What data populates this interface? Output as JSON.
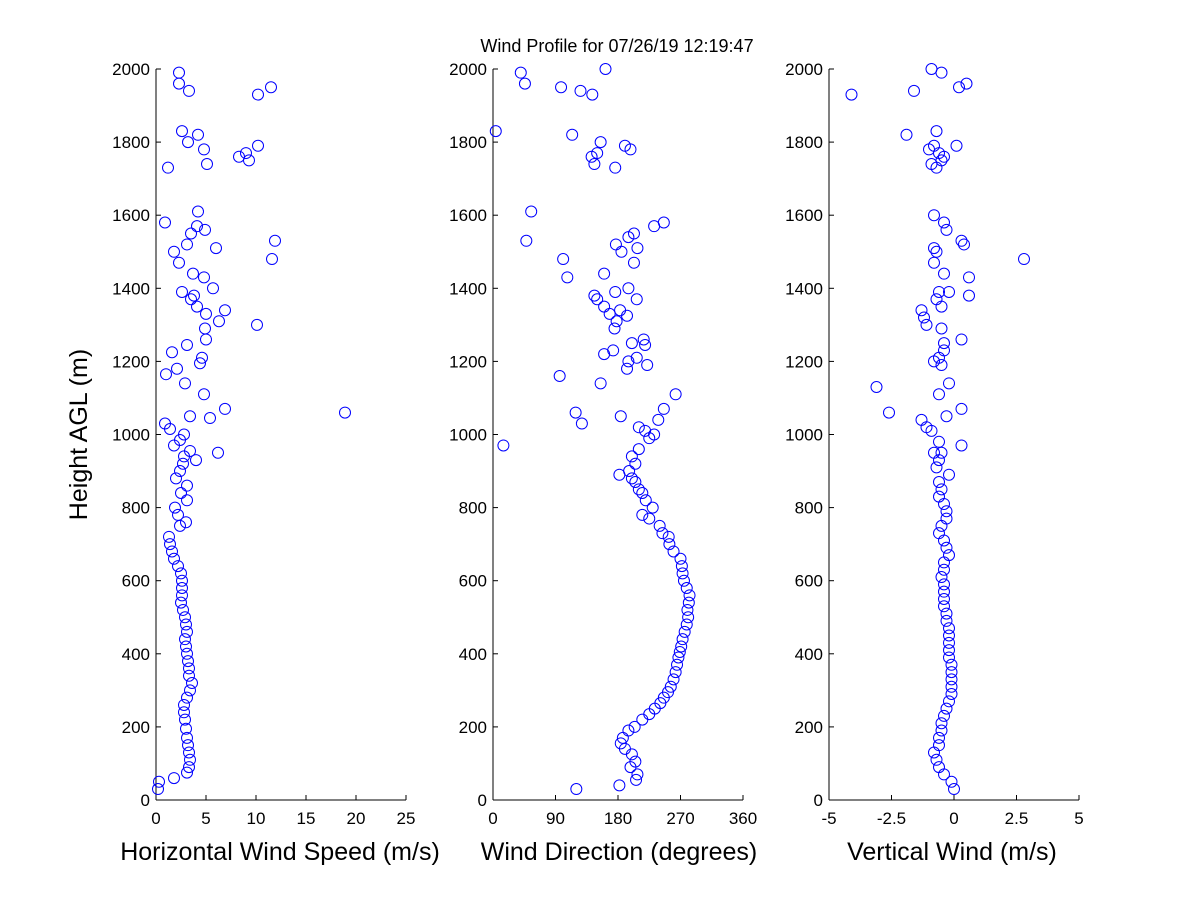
{
  "figure": {
    "title": "Wind Profile for  07/26/19 12:19:47",
    "marker_color": "#0000ff"
  },
  "chart_data": [
    {
      "type": "scatter",
      "xlabel": "Horizontal Wind Speed (m/s)",
      "ylabel": "Height AGL (m)",
      "xlim": [
        0,
        25
      ],
      "ylim": [
        0,
        2000
      ],
      "xticks": [
        0,
        5,
        10,
        15,
        20,
        25
      ],
      "xtick_labels": [
        "0",
        "5",
        "10",
        "15",
        "20",
        "25"
      ],
      "yticks": [
        0,
        200,
        400,
        600,
        800,
        1000,
        1200,
        1400,
        1600,
        1800,
        2000
      ],
      "ytick_labels": [
        "0",
        "200",
        "400",
        "600",
        "800",
        "1000",
        "1200",
        "1400",
        "1600",
        "1800",
        "2000"
      ],
      "grid": false,
      "points": [
        [
          0.3,
          50
        ],
        [
          0.2,
          30
        ],
        [
          1.8,
          60
        ],
        [
          3.1,
          75
        ],
        [
          3.3,
          90
        ],
        [
          3.4,
          110
        ],
        [
          3.3,
          130
        ],
        [
          3.2,
          150
        ],
        [
          3.1,
          170
        ],
        [
          3.0,
          195
        ],
        [
          2.9,
          220
        ],
        [
          2.8,
          240
        ],
        [
          2.8,
          260
        ],
        [
          3.1,
          280
        ],
        [
          3.4,
          300
        ],
        [
          3.6,
          320
        ],
        [
          3.3,
          340
        ],
        [
          3.3,
          360
        ],
        [
          3.2,
          380
        ],
        [
          3.1,
          400
        ],
        [
          3.0,
          420
        ],
        [
          2.9,
          440
        ],
        [
          3.1,
          460
        ],
        [
          3.0,
          480
        ],
        [
          2.9,
          500
        ],
        [
          2.7,
          520
        ],
        [
          2.5,
          540
        ],
        [
          2.6,
          560
        ],
        [
          2.6,
          580
        ],
        [
          2.6,
          600
        ],
        [
          2.5,
          620
        ],
        [
          2.2,
          640
        ],
        [
          1.8,
          660
        ],
        [
          1.6,
          680
        ],
        [
          1.4,
          700
        ],
        [
          1.3,
          720
        ],
        [
          2.4,
          750
        ],
        [
          3.0,
          760
        ],
        [
          2.2,
          780
        ],
        [
          1.9,
          800
        ],
        [
          3.1,
          820
        ],
        [
          2.5,
          840
        ],
        [
          3.1,
          860
        ],
        [
          2.0,
          880
        ],
        [
          2.4,
          900
        ],
        [
          2.7,
          920
        ],
        [
          2.8,
          940
        ],
        [
          3.4,
          955
        ],
        [
          1.8,
          970
        ],
        [
          2.4,
          985
        ],
        [
          2.8,
          1000
        ],
        [
          1.4,
          1015
        ],
        [
          0.9,
          1030
        ],
        [
          3.4,
          1050
        ],
        [
          5.4,
          1045
        ],
        [
          6.9,
          1070
        ],
        [
          18.9,
          1060
        ],
        [
          4.8,
          1110
        ],
        [
          2.9,
          1140
        ],
        [
          1.0,
          1165
        ],
        [
          2.1,
          1180
        ],
        [
          4.4,
          1195
        ],
        [
          4.6,
          1210
        ],
        [
          1.6,
          1225
        ],
        [
          3.1,
          1245
        ],
        [
          5.0,
          1260
        ],
        [
          4.9,
          1290
        ],
        [
          10.1,
          1300
        ],
        [
          6.3,
          1310
        ],
        [
          5.0,
          1330
        ],
        [
          6.9,
          1340
        ],
        [
          4.1,
          1350
        ],
        [
          3.5,
          1370
        ],
        [
          3.8,
          1380
        ],
        [
          2.6,
          1390
        ],
        [
          5.7,
          1400
        ],
        [
          4.8,
          1430
        ],
        [
          3.7,
          1440
        ],
        [
          2.3,
          1470
        ],
        [
          11.6,
          1480
        ],
        [
          1.8,
          1500
        ],
        [
          6.0,
          1510
        ],
        [
          3.1,
          1520
        ],
        [
          11.9,
          1530
        ],
        [
          3.5,
          1550
        ],
        [
          4.9,
          1560
        ],
        [
          4.1,
          1570
        ],
        [
          0.9,
          1580
        ],
        [
          4.2,
          1610
        ],
        [
          6.2,
          950
        ],
        [
          4.0,
          930
        ],
        [
          8.3,
          1760
        ],
        [
          9.3,
          1750
        ],
        [
          9.0,
          1770
        ],
        [
          4.8,
          1780
        ],
        [
          10.2,
          1790
        ],
        [
          3.2,
          1800
        ],
        [
          1.2,
          1730
        ],
        [
          5.1,
          1740
        ],
        [
          2.6,
          1830
        ],
        [
          4.2,
          1820
        ],
        [
          10.2,
          1930
        ],
        [
          11.5,
          1950
        ],
        [
          3.3,
          1940
        ],
        [
          2.3,
          1960
        ],
        [
          2.3,
          1990
        ]
      ]
    },
    {
      "type": "scatter",
      "xlabel": "Wind Direction (degrees)",
      "ylabel": "",
      "xlim": [
        0,
        360
      ],
      "ylim": [
        0,
        2000
      ],
      "xticks": [
        0,
        90,
        180,
        270,
        360
      ],
      "xtick_labels": [
        "0",
        "90",
        "180",
        "270",
        "360"
      ],
      "yticks": [
        0,
        200,
        400,
        600,
        800,
        1000,
        1200,
        1400,
        1600,
        1800,
        2000
      ],
      "ytick_labels": [
        "0",
        "200",
        "400",
        "600",
        "800",
        "1000",
        "1200",
        "1400",
        "1600",
        "1800",
        "2000"
      ],
      "grid": false,
      "points": [
        [
          120,
          30
        ],
        [
          182,
          40
        ],
        [
          206,
          55
        ],
        [
          208,
          70
        ],
        [
          198,
          90
        ],
        [
          205,
          105
        ],
        [
          200,
          125
        ],
        [
          190,
          140
        ],
        [
          184,
          155
        ],
        [
          187,
          170
        ],
        [
          195,
          190
        ],
        [
          204,
          200
        ],
        [
          215,
          220
        ],
        [
          225,
          235
        ],
        [
          233,
          250
        ],
        [
          241,
          265
        ],
        [
          246,
          280
        ],
        [
          252,
          295
        ],
        [
          256,
          310
        ],
        [
          260,
          330
        ],
        [
          263,
          350
        ],
        [
          265,
          370
        ],
        [
          267,
          390
        ],
        [
          269,
          405
        ],
        [
          271,
          420
        ],
        [
          273,
          440
        ],
        [
          276,
          460
        ],
        [
          279,
          480
        ],
        [
          281,
          500
        ],
        [
          280,
          520
        ],
        [
          282,
          540
        ],
        [
          283,
          560
        ],
        [
          279,
          580
        ],
        [
          275,
          600
        ],
        [
          273,
          620
        ],
        [
          272,
          640
        ],
        [
          270,
          660
        ],
        [
          260,
          680
        ],
        [
          254,
          700
        ],
        [
          253,
          720
        ],
        [
          244,
          730
        ],
        [
          240,
          750
        ],
        [
          225,
          770
        ],
        [
          215,
          780
        ],
        [
          230,
          800
        ],
        [
          220,
          820
        ],
        [
          215,
          840
        ],
        [
          210,
          850
        ],
        [
          205,
          870
        ],
        [
          200,
          880
        ],
        [
          182,
          890
        ],
        [
          196,
          900
        ],
        [
          205,
          920
        ],
        [
          200,
          940
        ],
        [
          210,
          960
        ],
        [
          225,
          990
        ],
        [
          232,
          1000
        ],
        [
          219,
          1010
        ],
        [
          210,
          1020
        ],
        [
          15,
          970
        ],
        [
          238,
          1040
        ],
        [
          184,
          1050
        ],
        [
          246,
          1070
        ],
        [
          119,
          1060
        ],
        [
          128,
          1030
        ],
        [
          263,
          1110
        ],
        [
          155,
          1140
        ],
        [
          96,
          1160
        ],
        [
          193,
          1180
        ],
        [
          222,
          1190
        ],
        [
          195,
          1200
        ],
        [
          207,
          1210
        ],
        [
          160,
          1220
        ],
        [
          173,
          1230
        ],
        [
          219,
          1245
        ],
        [
          217,
          1260
        ],
        [
          200,
          1250
        ],
        [
          175,
          1290
        ],
        [
          178,
          1310
        ],
        [
          193,
          1325
        ],
        [
          168,
          1330
        ],
        [
          183,
          1340
        ],
        [
          160,
          1350
        ],
        [
          150,
          1370
        ],
        [
          207,
          1370
        ],
        [
          146,
          1380
        ],
        [
          176,
          1390
        ],
        [
          195,
          1400
        ],
        [
          203,
          1470
        ],
        [
          160,
          1440
        ],
        [
          107,
          1430
        ],
        [
          101,
          1480
        ],
        [
          185,
          1500
        ],
        [
          177,
          1520
        ],
        [
          208,
          1510
        ],
        [
          195,
          1540
        ],
        [
          203,
          1550
        ],
        [
          232,
          1570
        ],
        [
          246,
          1580
        ],
        [
          48,
          1530
        ],
        [
          55,
          1610
        ],
        [
          198,
          1780
        ],
        [
          190,
          1790
        ],
        [
          146,
          1740
        ],
        [
          176,
          1730
        ],
        [
          150,
          1770
        ],
        [
          142,
          1760
        ],
        [
          155,
          1800
        ],
        [
          114,
          1820
        ],
        [
          4,
          1830
        ],
        [
          143,
          1930
        ],
        [
          126,
          1940
        ],
        [
          98,
          1950
        ],
        [
          46,
          1960
        ],
        [
          40,
          1990
        ],
        [
          162,
          2000
        ]
      ]
    },
    {
      "type": "scatter",
      "xlabel": "Vertical Wind (m/s)",
      "ylabel": "",
      "xlim": [
        -5,
        5
      ],
      "ylim": [
        0,
        2000
      ],
      "xticks": [
        -5,
        -2.5,
        0,
        2.5,
        5
      ],
      "xtick_labels": [
        "-5",
        "-2.5",
        "0",
        "2.5",
        "5"
      ],
      "yticks": [
        0,
        200,
        400,
        600,
        800,
        1000,
        1200,
        1400,
        1600,
        1800,
        2000
      ],
      "ytick_labels": [
        "0",
        "200",
        "400",
        "600",
        "800",
        "1000",
        "1200",
        "1400",
        "1600",
        "1800",
        "2000"
      ],
      "grid": false,
      "points": [
        [
          0.0,
          30
        ],
        [
          -0.1,
          50
        ],
        [
          -0.4,
          70
        ],
        [
          -0.6,
          90
        ],
        [
          -0.7,
          110
        ],
        [
          -0.8,
          130
        ],
        [
          -0.6,
          150
        ],
        [
          -0.6,
          170
        ],
        [
          -0.5,
          190
        ],
        [
          -0.5,
          210
        ],
        [
          -0.4,
          230
        ],
        [
          -0.3,
          250
        ],
        [
          -0.2,
          270
        ],
        [
          -0.1,
          290
        ],
        [
          -0.1,
          310
        ],
        [
          -0.1,
          330
        ],
        [
          -0.1,
          350
        ],
        [
          -0.1,
          370
        ],
        [
          -0.2,
          390
        ],
        [
          -0.2,
          410
        ],
        [
          -0.2,
          430
        ],
        [
          -0.2,
          450
        ],
        [
          -0.2,
          470
        ],
        [
          -0.3,
          490
        ],
        [
          -0.3,
          510
        ],
        [
          -0.4,
          530
        ],
        [
          -0.4,
          550
        ],
        [
          -0.4,
          570
        ],
        [
          -0.4,
          590
        ],
        [
          -0.5,
          610
        ],
        [
          -0.4,
          630
        ],
        [
          -0.4,
          650
        ],
        [
          -0.2,
          670
        ],
        [
          -0.3,
          690
        ],
        [
          -0.4,
          710
        ],
        [
          -0.6,
          730
        ],
        [
          -0.5,
          750
        ],
        [
          -0.3,
          770
        ],
        [
          -0.3,
          790
        ],
        [
          -0.4,
          810
        ],
        [
          -0.6,
          830
        ],
        [
          -0.5,
          850
        ],
        [
          -0.6,
          870
        ],
        [
          -0.2,
          890
        ],
        [
          -0.7,
          910
        ],
        [
          -0.6,
          930
        ],
        [
          -0.5,
          950
        ],
        [
          -0.8,
          950
        ],
        [
          0.3,
          970
        ],
        [
          -0.6,
          980
        ],
        [
          -0.9,
          1010
        ],
        [
          -1.1,
          1020
        ],
        [
          -1.3,
          1040
        ],
        [
          -2.6,
          1060
        ],
        [
          -0.3,
          1050
        ],
        [
          0.3,
          1070
        ],
        [
          -3.1,
          1130
        ],
        [
          -0.6,
          1110
        ],
        [
          -0.2,
          1140
        ],
        [
          -0.8,
          1200
        ],
        [
          -0.6,
          1210
        ],
        [
          -0.5,
          1190
        ],
        [
          -0.4,
          1230
        ],
        [
          -0.4,
          1250
        ],
        [
          0.3,
          1260
        ],
        [
          -0.5,
          1290
        ],
        [
          -1.1,
          1300
        ],
        [
          -1.2,
          1320
        ],
        [
          -1.3,
          1340
        ],
        [
          -0.5,
          1350
        ],
        [
          -0.7,
          1370
        ],
        [
          -0.6,
          1390
        ],
        [
          -0.2,
          1390
        ],
        [
          0.6,
          1380
        ],
        [
          0.6,
          1430
        ],
        [
          -0.4,
          1440
        ],
        [
          2.8,
          1480
        ],
        [
          -0.8,
          1470
        ],
        [
          -0.7,
          1500
        ],
        [
          -0.8,
          1510
        ],
        [
          0.3,
          1530
        ],
        [
          0.4,
          1520
        ],
        [
          -0.3,
          1560
        ],
        [
          -0.4,
          1580
        ],
        [
          -0.8,
          1600
        ],
        [
          -1.6,
          1940
        ],
        [
          -4.1,
          1930
        ],
        [
          -1.9,
          1820
        ],
        [
          -0.7,
          1830
        ],
        [
          -1.0,
          1780
        ],
        [
          -0.6,
          1770
        ],
        [
          -0.4,
          1760
        ],
        [
          -0.5,
          1750
        ],
        [
          -0.7,
          1730
        ],
        [
          -0.9,
          1740
        ],
        [
          -0.8,
          1790
        ],
        [
          0.1,
          1790
        ],
        [
          0.2,
          1950
        ],
        [
          0.5,
          1960
        ],
        [
          -0.5,
          1990
        ],
        [
          -0.9,
          2000
        ]
      ]
    }
  ]
}
